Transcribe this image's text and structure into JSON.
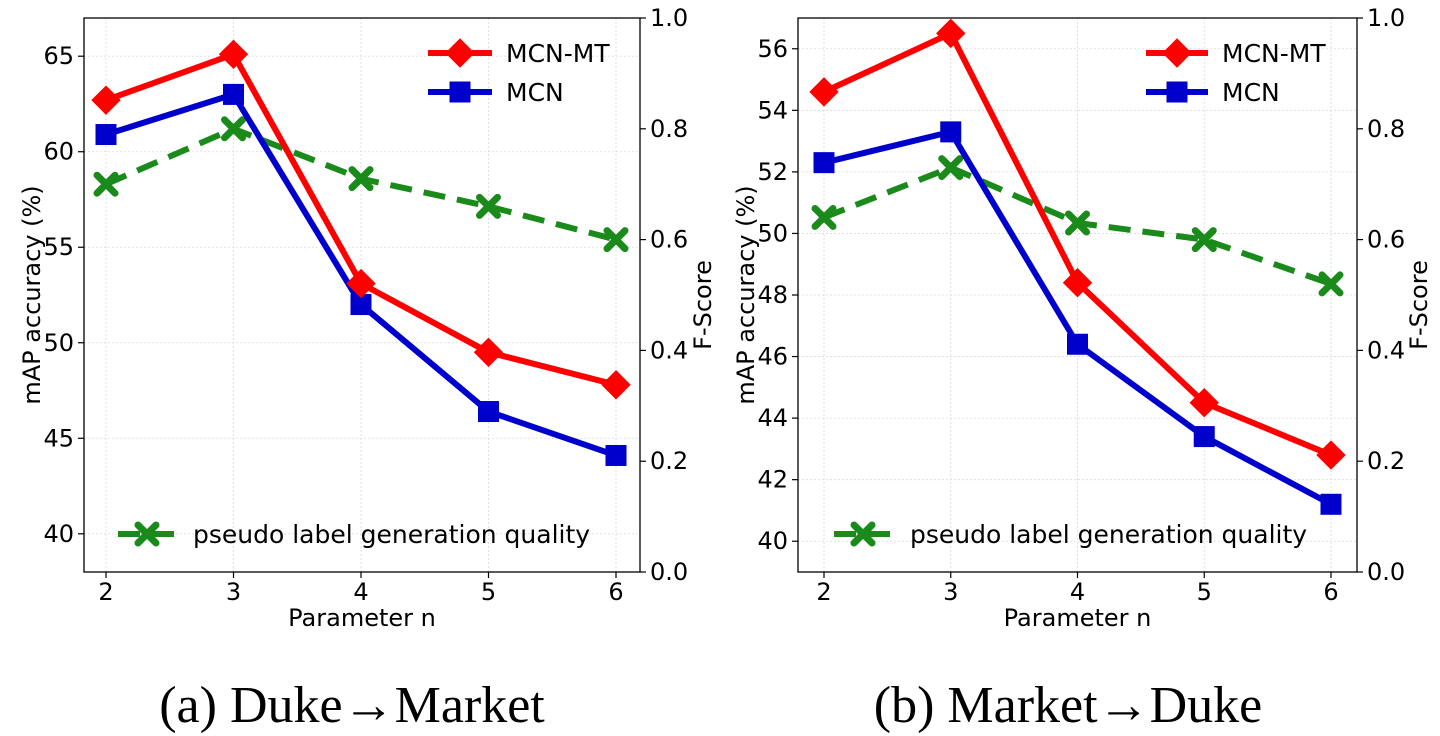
{
  "chart_data": [
    {
      "type": "line",
      "caption": "(a) Duke→Market",
      "xlabel": "Parameter n",
      "ylabel": "mAP accuracy (%)",
      "ylabel_right": "F-Score",
      "x": [
        2,
        3,
        4,
        5,
        6
      ],
      "ylim": [
        38,
        67
      ],
      "yticks": [
        40,
        45,
        50,
        55,
        60,
        65
      ],
      "ylim_right": [
        0.0,
        1.0
      ],
      "yticks_right": [
        "0.0",
        "0.2",
        "0.4",
        "0.6",
        "0.8",
        "1.0"
      ],
      "grid": true,
      "series": [
        {
          "name": "MCN-MT",
          "axis": "left",
          "color": "#ff0000",
          "marker": "diamond",
          "values": [
            62.7,
            65.1,
            53.1,
            49.5,
            47.8
          ]
        },
        {
          "name": "MCN",
          "axis": "left",
          "color": "#0000cc",
          "marker": "square",
          "values": [
            60.9,
            63.0,
            52.0,
            46.4,
            44.1
          ]
        },
        {
          "name": "pseudo label generation quality",
          "axis": "right",
          "color": "#1a8a1a",
          "marker": "x",
          "dashed": true,
          "values": [
            0.7,
            0.8,
            0.71,
            0.66,
            0.6
          ]
        }
      ]
    },
    {
      "type": "line",
      "caption": "(b) Market→Duke",
      "xlabel": "Parameter n",
      "ylabel": "mAP accuracy (%)",
      "ylabel_right": "F-Score",
      "x": [
        2,
        3,
        4,
        5,
        6
      ],
      "ylim": [
        39,
        57
      ],
      "yticks": [
        40,
        42,
        44,
        46,
        48,
        50,
        52,
        54,
        56
      ],
      "ylim_right": [
        0.0,
        1.0
      ],
      "yticks_right": [
        "0.0",
        "0.2",
        "0.4",
        "0.6",
        "0.8",
        "1.0"
      ],
      "grid": true,
      "series": [
        {
          "name": "MCN-MT",
          "axis": "left",
          "color": "#ff0000",
          "marker": "diamond",
          "values": [
            54.6,
            56.5,
            48.4,
            44.5,
            42.8
          ]
        },
        {
          "name": "MCN",
          "axis": "left",
          "color": "#0000cc",
          "marker": "square",
          "values": [
            52.3,
            53.3,
            46.4,
            43.4,
            41.2
          ]
        },
        {
          "name": "pseudo label generation quality",
          "axis": "right",
          "color": "#1a8a1a",
          "marker": "x",
          "dashed": true,
          "values": [
            0.64,
            0.73,
            0.63,
            0.6,
            0.52
          ]
        }
      ]
    }
  ]
}
